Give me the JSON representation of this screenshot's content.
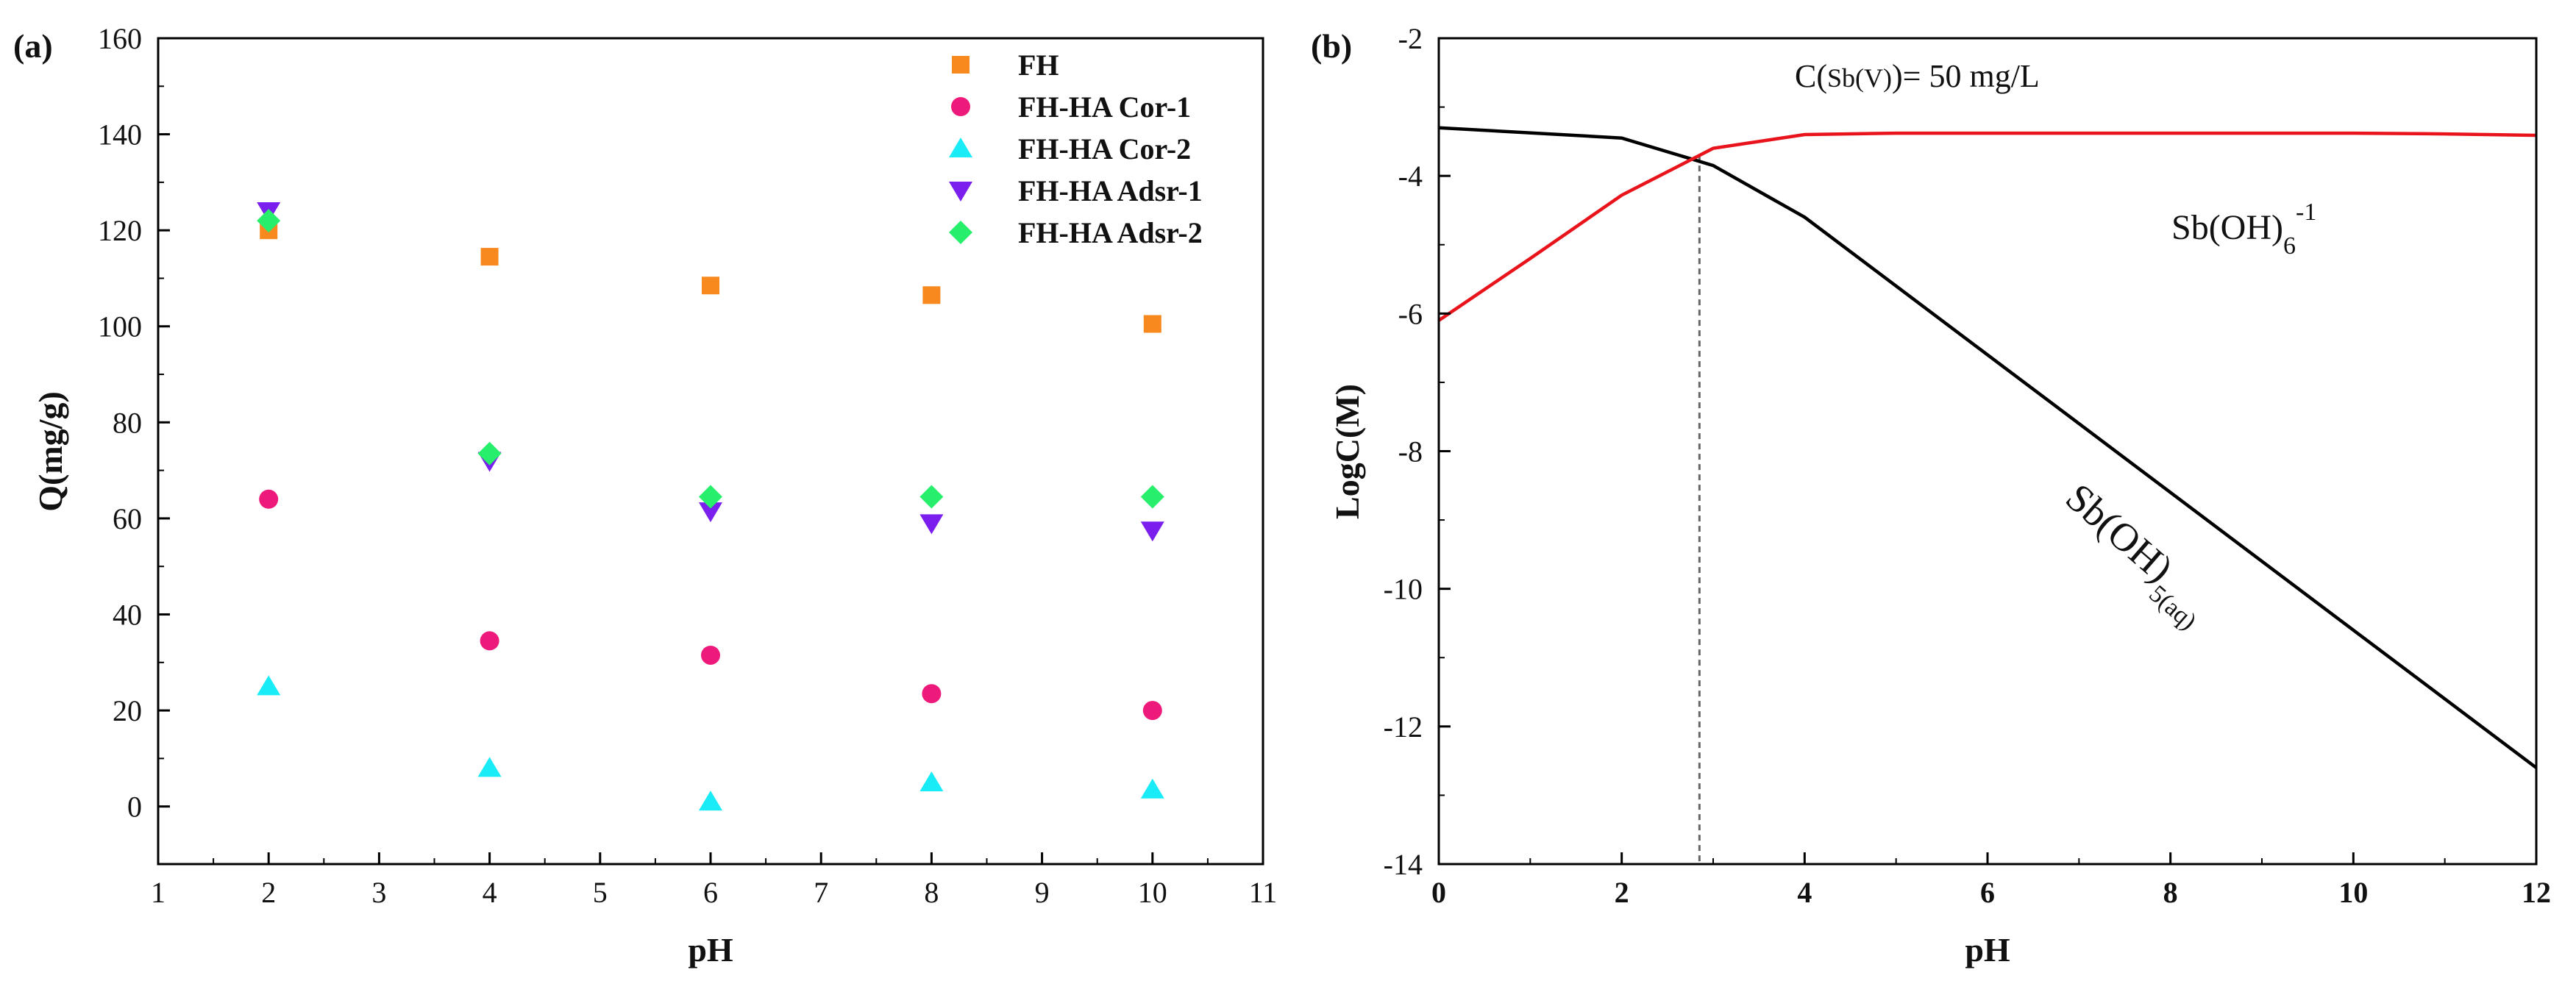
{
  "chart_data": [
    {
      "panel_label": "(a)",
      "type": "scatter",
      "xlabel": "pH",
      "ylabel": "Q(mg/g)",
      "xlim": [
        1,
        11
      ],
      "ylim": [
        -12,
        160
      ],
      "xticks": [
        1,
        2,
        3,
        4,
        5,
        6,
        7,
        8,
        9,
        10,
        11
      ],
      "yticks": [
        0,
        20,
        40,
        60,
        80,
        100,
        120,
        140,
        160
      ],
      "legend_position": "top-right",
      "series": [
        {
          "name": "FH",
          "marker": "square",
          "color": "#f7891f",
          "x": [
            2,
            4,
            6,
            8,
            10
          ],
          "y": [
            120,
            114.5,
            108.5,
            106.5,
            100.5
          ]
        },
        {
          "name": "FH-HA Cor-1",
          "marker": "circle",
          "color": "#ee1a7b",
          "x": [
            2,
            4,
            6,
            8,
            10
          ],
          "y": [
            64,
            34.5,
            31.5,
            23.5,
            20
          ]
        },
        {
          "name": "FH-HA Cor-2",
          "marker": "triangle-up",
          "color": "#19ecf7",
          "x": [
            2,
            4,
            6,
            8,
            10
          ],
          "y": [
            25,
            8,
            1,
            5,
            3.5
          ]
        },
        {
          "name": "FH-HA Adsr-1",
          "marker": "triangle-down",
          "color": "#7b1fef",
          "x": [
            2,
            4,
            6,
            8,
            10
          ],
          "y": [
            124,
            72,
            61.5,
            59,
            57.5
          ]
        },
        {
          "name": "FH-HA Adsr-2",
          "marker": "diamond",
          "color": "#27ef6b",
          "x": [
            2,
            4,
            6,
            8,
            10
          ],
          "y": [
            122,
            73.5,
            64.5,
            64.5,
            64.5
          ]
        }
      ]
    },
    {
      "panel_label": "(b)",
      "type": "line",
      "xlabel": "pH",
      "ylabel": "LogC(M)",
      "xlim": [
        0,
        12
      ],
      "ylim": [
        -14,
        -2
      ],
      "xticks": [
        0,
        2,
        4,
        6,
        8,
        10,
        12
      ],
      "yticks": [
        -14,
        -12,
        -10,
        -8,
        -6,
        -4,
        -2
      ],
      "annotation_prefix": "C(",
      "annotation_species": "Sb(V)",
      "annotation_suffix": ")= 50 mg/L",
      "label_anion_base": "Sb(OH)",
      "label_anion_sub": "6",
      "label_anion_sup": "-1",
      "label_neutral_base": "Sb(OH)",
      "label_neutral_sub": "5(aq)",
      "vline_x": 2.85,
      "series": [
        {
          "name": "Sb(OH)5(aq)",
          "color": "#000000",
          "x": [
            0,
            2,
            3,
            4,
            12
          ],
          "y": [
            -3.3,
            -3.45,
            -3.85,
            -4.6,
            -12.6
          ]
        },
        {
          "name": "Sb(OH)6-1",
          "color": "#e8131b",
          "x": [
            0,
            1,
            2,
            3,
            4,
            5,
            6,
            8,
            10,
            11,
            12
          ],
          "y": [
            -6.1,
            -5.2,
            -4.28,
            -3.6,
            -3.4,
            -3.38,
            -3.38,
            -3.38,
            -3.38,
            -3.39,
            -3.41
          ]
        }
      ]
    }
  ]
}
